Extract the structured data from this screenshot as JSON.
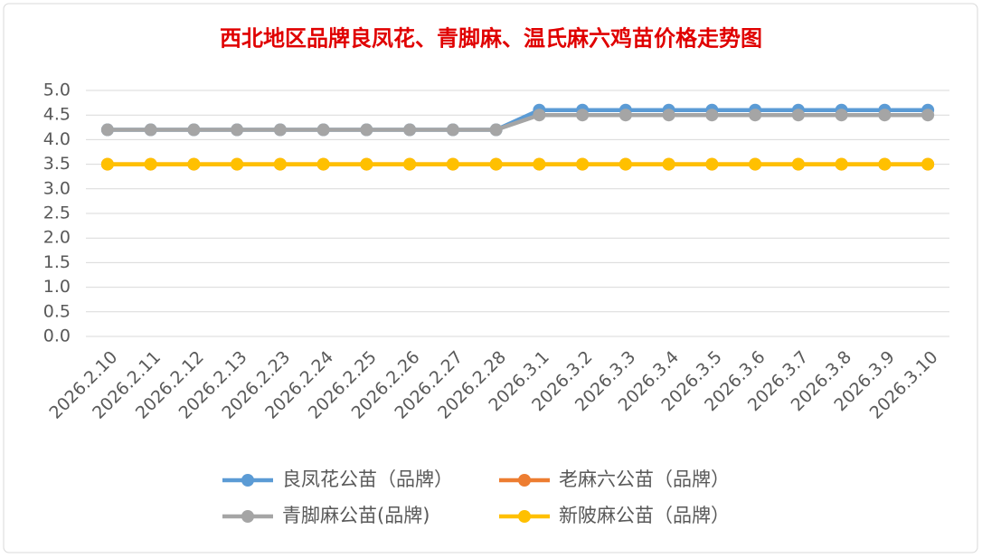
{
  "chart_data": {
    "type": "line",
    "title": "西北地区品牌良凤花、青脚麻、温氏麻六鸡苗价格走势图",
    "categories": [
      "2026.2.10",
      "2026.2.11",
      "2026.2.12",
      "2026.2.13",
      "2026.2.23",
      "2026.2.24",
      "2026.2.25",
      "2026.2.26",
      "2026.2.27",
      "2026.2.28",
      "2026.3.1",
      "2026.3.2",
      "2026.3.3",
      "2026.3.4",
      "2026.3.5",
      "2026.3.6",
      "2026.3.7",
      "2026.3.8",
      "2026.3.9",
      "2026.3.10"
    ],
    "series": [
      {
        "name": "良凤花公苗（品牌）",
        "color": "#5b9bd5",
        "values": [
          4.2,
          4.2,
          4.2,
          4.2,
          4.2,
          4.2,
          4.2,
          4.2,
          4.2,
          4.2,
          4.6,
          4.6,
          4.6,
          4.6,
          4.6,
          4.6,
          4.6,
          4.6,
          4.6,
          4.6
        ]
      },
      {
        "name": "老麻六公苗（品牌）",
        "color": "#ed7d31",
        "values": [
          3.5,
          3.5,
          3.5,
          3.5,
          3.5,
          3.5,
          3.5,
          3.5,
          3.5,
          3.5,
          3.5,
          3.5,
          3.5,
          3.5,
          3.5,
          3.5,
          3.5,
          3.5,
          3.5,
          3.5
        ]
      },
      {
        "name": "青脚麻公苗(品牌)",
        "color": "#a5a5a5",
        "values": [
          4.2,
          4.2,
          4.2,
          4.2,
          4.2,
          4.2,
          4.2,
          4.2,
          4.2,
          4.2,
          4.5,
          4.5,
          4.5,
          4.5,
          4.5,
          4.5,
          4.5,
          4.5,
          4.5,
          4.5
        ]
      },
      {
        "name": "新陂麻公苗（品牌）",
        "color": "#ffc000",
        "values": [
          3.5,
          3.5,
          3.5,
          3.5,
          3.5,
          3.5,
          3.5,
          3.5,
          3.5,
          3.5,
          3.5,
          3.5,
          3.5,
          3.5,
          3.5,
          3.5,
          3.5,
          3.5,
          3.5,
          3.5
        ]
      }
    ],
    "ylim": [
      0,
      5
    ],
    "yticks": [
      {
        "value": 0,
        "label": "0.0"
      },
      {
        "value": 0.5,
        "label": "0.5"
      },
      {
        "value": 1,
        "label": "1.0"
      },
      {
        "value": 1.5,
        "label": "1.5"
      },
      {
        "value": 2,
        "label": "2.0"
      },
      {
        "value": 2.5,
        "label": "2.5"
      },
      {
        "value": 3,
        "label": "3.0"
      },
      {
        "value": 3.5,
        "label": "3.5"
      },
      {
        "value": 4,
        "label": "4.0"
      },
      {
        "value": 4.5,
        "label": "4.5"
      },
      {
        "value": 5,
        "label": "5.0"
      }
    ],
    "grid": true,
    "legend": "bottom"
  }
}
